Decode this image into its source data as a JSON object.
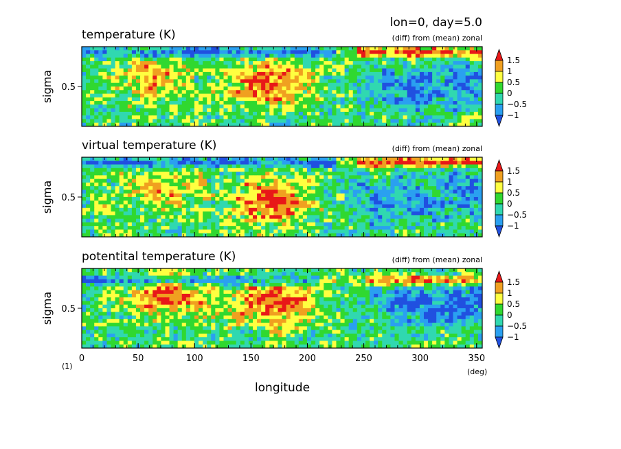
{
  "header": "lon=0, day=5.0",
  "colors": {
    "levels": [
      "#2050e0",
      "#2aa0f0",
      "#30d8b0",
      "#30d830",
      "#ffff40",
      "#f0a020",
      "#e81818"
    ],
    "ocean_base": "#30d830",
    "axis": "#000000"
  },
  "chart_data": [
    {
      "type": "heatmap",
      "title": "temperature (K)",
      "subtitle": "(diff) from (mean) zonal",
      "ylabel": "sigma",
      "yticks": [
        "0.5"
      ],
      "colorbar": {
        "labels": [
          "1.5",
          "1",
          "0.5",
          "0",
          "−0.5",
          "−1"
        ]
      },
      "xlim": [
        0,
        355
      ],
      "ylim_sigma": [
        1.0,
        0.0
      ],
      "value_range": [
        -1.25,
        1.75
      ],
      "features": [
        {
          "kind": "band",
          "lon": [
            0,
            245
          ],
          "sigma": 0.93,
          "value": -1.2
        },
        {
          "kind": "band",
          "lon": [
            225,
            355
          ],
          "sigma": 0.93,
          "value": 1.6
        },
        {
          "kind": "blob",
          "lon": 165,
          "sigma": 0.55,
          "value": 1.6
        },
        {
          "kind": "blob",
          "lon": 60,
          "sigma": 0.6,
          "value": 1.0
        },
        {
          "kind": "blob",
          "lon": 280,
          "sigma": 0.45,
          "value": -0.9
        },
        {
          "kind": "blob",
          "lon": 335,
          "sigma": 0.55,
          "value": -0.8
        }
      ]
    },
    {
      "type": "heatmap",
      "title": "virtual temperature (K)",
      "subtitle": "(diff) from (mean) zonal",
      "ylabel": "sigma",
      "yticks": [
        "0.5"
      ],
      "colorbar": {
        "labels": [
          "1.5",
          "1",
          "0.5",
          "0",
          "−0.5",
          "−1"
        ]
      },
      "xlim": [
        0,
        355
      ],
      "ylim_sigma": [
        1.0,
        0.0
      ],
      "value_range": [
        -1.25,
        1.75
      ],
      "features": [
        {
          "kind": "band",
          "lon": [
            0,
            245
          ],
          "sigma": 0.93,
          "value": -1.2
        },
        {
          "kind": "band",
          "lon": [
            225,
            355
          ],
          "sigma": 0.93,
          "value": 1.6
        },
        {
          "kind": "blob",
          "lon": 170,
          "sigma": 0.45,
          "value": 1.5
        },
        {
          "kind": "blob",
          "lon": 70,
          "sigma": 0.6,
          "value": 1.0
        },
        {
          "kind": "blob",
          "lon": 270,
          "sigma": 0.45,
          "value": -0.9
        },
        {
          "kind": "blob",
          "lon": 340,
          "sigma": 0.55,
          "value": -0.9
        }
      ]
    },
    {
      "type": "heatmap",
      "title": "potentital temperature (K)",
      "subtitle": "(diff) from (mean) zonal",
      "ylabel": "sigma",
      "yticks": [
        "0.5"
      ],
      "colorbar": {
        "labels": [
          "1.5",
          "1",
          "0.5",
          "0",
          "−0.5",
          "−1"
        ]
      },
      "xlim": [
        0,
        355
      ],
      "ylim_sigma": [
        1.0,
        0.0
      ],
      "value_range": [
        -1.25,
        1.75
      ],
      "features": [
        {
          "kind": "band",
          "lon": [
            0,
            250
          ],
          "sigma": 0.85,
          "value": -1.2
        },
        {
          "kind": "band",
          "lon": [
            210,
            355
          ],
          "sigma": 0.85,
          "value": 1.6
        },
        {
          "kind": "blob",
          "lon": 170,
          "sigma": 0.55,
          "value": 1.7
        },
        {
          "kind": "blob",
          "lon": 75,
          "sigma": 0.65,
          "value": 1.3
        },
        {
          "kind": "blob",
          "lon": 290,
          "sigma": 0.55,
          "value": -0.9
        },
        {
          "kind": "blob",
          "lon": 340,
          "sigma": 0.55,
          "value": -1.0
        }
      ]
    }
  ],
  "xaxis": {
    "ticks": [
      0,
      50,
      100,
      150,
      200,
      250,
      300,
      350
    ],
    "label": "longitude",
    "unit": "(deg)",
    "corner": "(1)"
  }
}
